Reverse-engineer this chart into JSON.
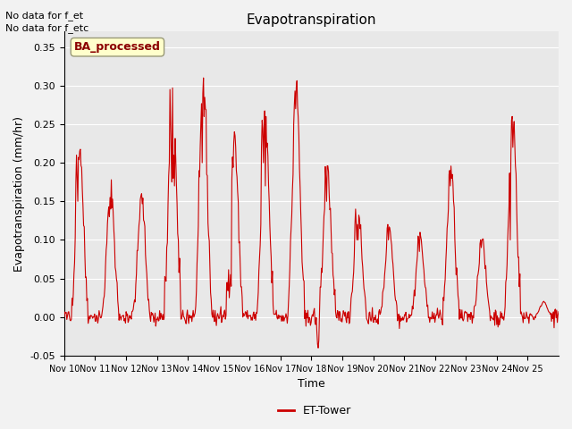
{
  "title": "Evapotranspiration",
  "ylabel": "Evapotranspiration (mm/hr)",
  "xlabel": "Time",
  "annotation1": "No data for f_et",
  "annotation2": "No data for f_etc",
  "box_label": "BA_processed",
  "legend_label": "ET-Tower",
  "ylim": [
    -0.05,
    0.37
  ],
  "yticks": [
    -0.05,
    0.0,
    0.05,
    0.1,
    0.15,
    0.2,
    0.25,
    0.3,
    0.35
  ],
  "xtick_labels": [
    "Nov 10",
    "Nov 11",
    "Nov 12",
    "Nov 13",
    "Nov 14",
    "Nov 15",
    "Nov 16",
    "Nov 17",
    "Nov 18",
    "Nov 19",
    "Nov 20",
    "Nov 21",
    "Nov 22",
    "Nov 23",
    "Nov 24",
    "Nov 25"
  ],
  "line_color": "#cc0000",
  "bg_color": "#e8e8e8",
  "box_facecolor": "#ffffcc",
  "box_edgecolor": "#999977",
  "fig_facecolor": "#f2f2f2"
}
